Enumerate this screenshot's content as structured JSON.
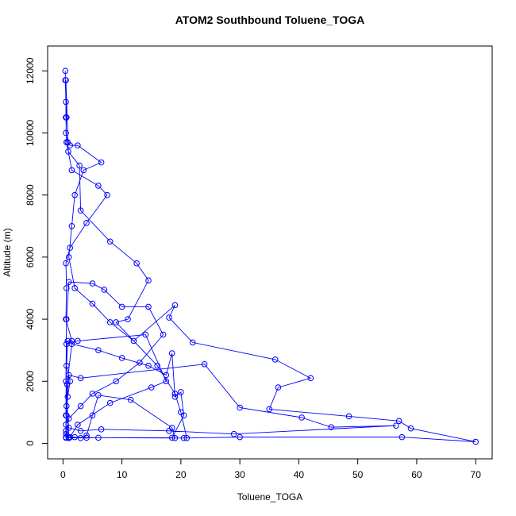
{
  "chart_data": {
    "type": "line",
    "title": "ATOM2 Southbound Toluene_TOGA",
    "x_label": "Toluene_TOGA",
    "y_label": "Altitude (m)",
    "color": "#0000ff",
    "xlim": [
      -2.6,
      72.8
    ],
    "ylim": [
      -500,
      12800
    ],
    "xticks": [
      0,
      10,
      20,
      30,
      40,
      50,
      60,
      70
    ],
    "yticks": [
      0,
      2000,
      4000,
      6000,
      8000,
      10000,
      12000
    ],
    "x": [
      0.4,
      0.4,
      0.5,
      0.6,
      0.5,
      0.8,
      1.2,
      2.5,
      6.5,
      3.5,
      2,
      1.5,
      1,
      2,
      5,
      8,
      12,
      19,
      18,
      22,
      36,
      42,
      36.5,
      35,
      48.5,
      57,
      59,
      70,
      57.5,
      30,
      20.5,
      6,
      1,
      0.5,
      0.6,
      0.8,
      1.2,
      0.6,
      0.8,
      1.5,
      0.5,
      0.6,
      0.5,
      1.2,
      4,
      7.5,
      6,
      1.5,
      0.6,
      0.5,
      0.5,
      0.9,
      2.8,
      3,
      8,
      12.5,
      14.5,
      11,
      9,
      16,
      19,
      20,
      21,
      19,
      18.5,
      11.5,
      6,
      5,
      4,
      3,
      2,
      1,
      0.5,
      0.6,
      1,
      3,
      24,
      30,
      40.5,
      45.5,
      56.5,
      29,
      18,
      6.5,
      3,
      1,
      0.5,
      0.6,
      2.5,
      14,
      17.5,
      15,
      8,
      2.5,
      1.2,
      0.5,
      0.5,
      0.7,
      1.5,
      6,
      10,
      14.5,
      17.5,
      18.5,
      19,
      20,
      20.5,
      18.5,
      4,
      1,
      0.5,
      0.6,
      1,
      5,
      7,
      10,
      14.5,
      17,
      13,
      9,
      5,
      3,
      1,
      0.5
    ],
    "values": [
      12000,
      11700,
      11000,
      10500,
      10000,
      9700,
      9600,
      9600,
      9050,
      8800,
      8000,
      7000,
      6000,
      5000,
      4500,
      3900,
      3300,
      4450,
      4050,
      3250,
      2700,
      2100,
      1800,
      1100,
      870,
      720,
      480,
      50,
      200,
      200,
      170,
      180,
      200,
      400,
      900,
      1500,
      2000,
      2500,
      3300,
      3300,
      4000,
      5000,
      5800,
      6300,
      7100,
      8000,
      8300,
      8800,
      9700,
      10500,
      11700,
      9400,
      8950,
      7500,
      6500,
      5800,
      5250,
      4000,
      3900,
      2500,
      1600,
      1000,
      170,
      170,
      500,
      1400,
      1550,
      900,
      250,
      170,
      200,
      170,
      300,
      1200,
      2200,
      2100,
      2550,
      1150,
      830,
      520,
      570,
      300,
      400,
      450,
      400,
      500,
      900,
      3200,
      3300,
      3500,
      2000,
      1800,
      1300,
      600,
      200,
      180,
      600,
      1900,
      3200,
      3000,
      2750,
      2500,
      2200,
      2900,
      1500,
      1650,
      900,
      180,
      180,
      180,
      2000,
      4000,
      5200,
      5150,
      4950,
      4400,
      4400,
      3500,
      2600,
      2000,
      1600,
      1200,
      800,
      200
    ]
  }
}
